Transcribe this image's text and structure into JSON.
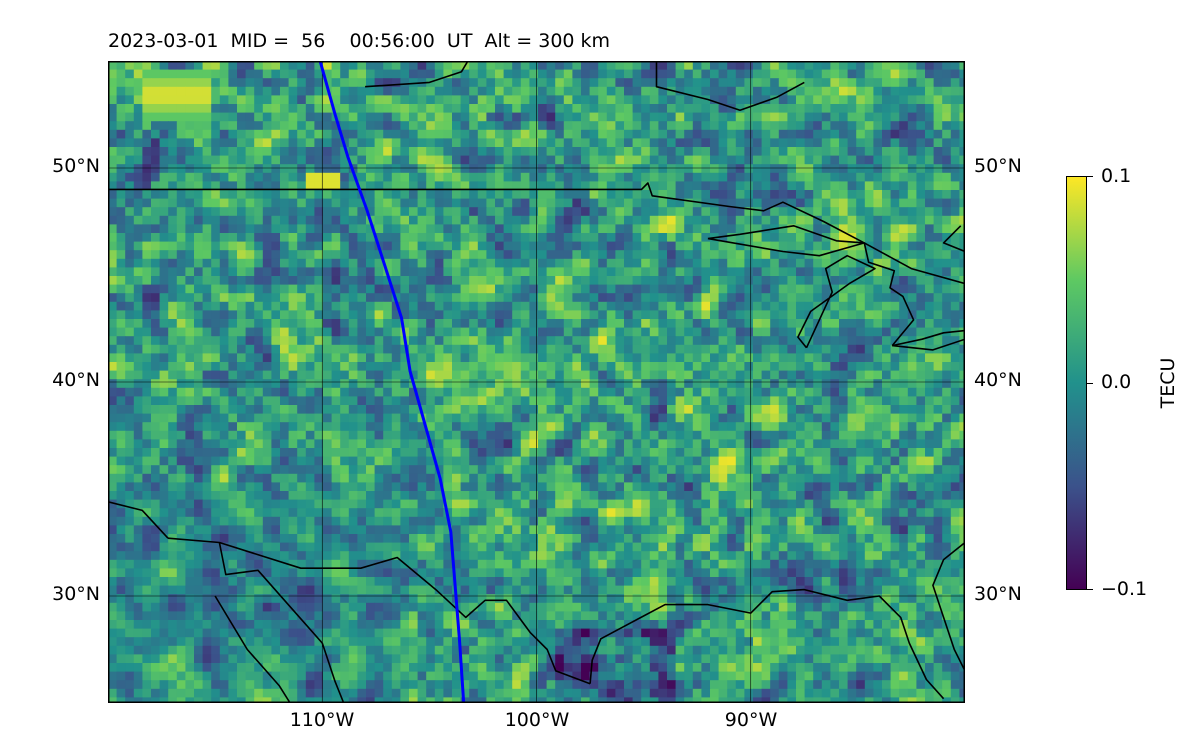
{
  "title": "2023-03-01  MID =  56    00:56:00  UT  Alt = 300 km",
  "map": {
    "projection": "plate-carree",
    "lon_range": [
      -120,
      -80
    ],
    "lat_range": [
      25,
      55
    ],
    "gridlines": true,
    "lat_labels": [
      "50°N",
      "40°N",
      "30°N"
    ],
    "lon_labels": [
      "110°W",
      "100°W",
      "90°W"
    ],
    "track_color": "#0000ff",
    "coast_color": "#000000"
  },
  "colorbar": {
    "label": "TECU",
    "tick_labels": [
      "0.1",
      "0.0",
      "−0.1"
    ],
    "range": [
      -0.1,
      0.1
    ],
    "colormap": "viridis",
    "colormap_stops": [
      "#440154",
      "#3b528b",
      "#21918c",
      "#5ec962",
      "#fde725"
    ]
  }
}
